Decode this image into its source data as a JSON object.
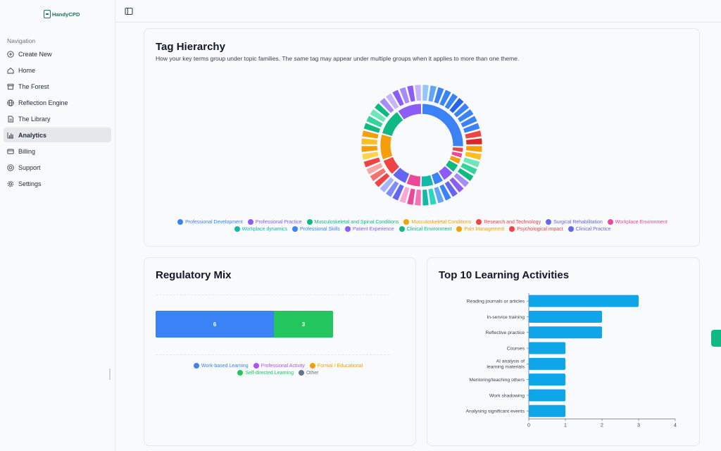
{
  "app": {
    "logo_text": "HandyCPD"
  },
  "sidebar": {
    "section_label": "Navigation",
    "items": [
      {
        "label": "Create New",
        "icon": "plus-circle-icon"
      },
      {
        "label": "Home",
        "icon": "home-icon"
      },
      {
        "label": "The Forest",
        "icon": "archive-icon"
      },
      {
        "label": "Reflection Engine",
        "icon": "globe-icon"
      },
      {
        "label": "The Library",
        "icon": "file-icon"
      },
      {
        "label": "Analytics",
        "icon": "bar-chart-icon",
        "active": true
      },
      {
        "label": "Billing",
        "icon": "card-icon"
      },
      {
        "label": "Support",
        "icon": "lifebuoy-icon"
      },
      {
        "label": "Settings",
        "icon": "gear-icon"
      }
    ]
  },
  "tag_hierarchy": {
    "title": "Tag Hierarchy",
    "subtitle": "How your key terms group under topic families. The same tag may appear under multiple groups when it applies to more than one theme.",
    "legend": [
      {
        "label": "Professional Development",
        "color": "#3b82f6"
      },
      {
        "label": "Professional Practice",
        "color": "#8b5cf6"
      },
      {
        "label": "Musculoskeletal and Spinal Conditions",
        "color": "#10b981"
      },
      {
        "label": "Musculoskeletal Conditions",
        "color": "#f59e0b"
      },
      {
        "label": "Research and Technology",
        "color": "#ef4444"
      },
      {
        "label": "Surgical Rehabilitation",
        "color": "#6366f1"
      },
      {
        "label": "Workplace Environment",
        "color": "#ec4899"
      },
      {
        "label": "Workplace dynamics",
        "color": "#14b8a6"
      },
      {
        "label": "Professional Skills",
        "color": "#3b82f6"
      },
      {
        "label": "Patient Experience",
        "color": "#8b5cf6"
      },
      {
        "label": "Clinical Environment",
        "color": "#10b981"
      },
      {
        "label": "Pain Management",
        "color": "#f59e0b"
      },
      {
        "label": "Psychological impact",
        "color": "#ef4444"
      },
      {
        "label": "Clinical Practice",
        "color": "#6366f1"
      }
    ]
  },
  "regulatory_mix": {
    "title": "Regulatory Mix",
    "segments": [
      {
        "label": "Work-based Learning",
        "value": 6,
        "color": "#3b82f6"
      },
      {
        "label": "Self-directed Learning",
        "value": 3,
        "color": "#22c55e"
      }
    ],
    "legend": [
      {
        "label": "Work-based Learning",
        "color": "#3b82f6"
      },
      {
        "label": "Professional Activity",
        "color": "#a855f7"
      },
      {
        "label": "Formal / Educational",
        "color": "#f59e0b"
      },
      {
        "label": "Self-directed Learning",
        "color": "#22c55e"
      },
      {
        "label": "Other",
        "color": "#64748b"
      }
    ]
  },
  "top_activities": {
    "title": "Top 10 Learning Activities",
    "bar_color": "#0ea5e9"
  },
  "chart_data": [
    {
      "type": "bar",
      "orientation": "horizontal",
      "categories": [
        "Reading journals or articles",
        "In-service training",
        "Reflective practice",
        "Courses",
        "AI analysis of learning materials",
        "Mentoring/teaching others",
        "Work shadowing",
        "Analysing significant events"
      ],
      "values": [
        3,
        2,
        2,
        1,
        1,
        1,
        1,
        1
      ],
      "xlim": [
        0,
        4
      ],
      "xticks": [
        0,
        1,
        2,
        3,
        4
      ]
    },
    {
      "type": "bar",
      "orientation": "stacked-horizontal",
      "categories": [
        "Work-based Learning",
        "Self-directed Learning"
      ],
      "values": [
        6,
        3
      ]
    }
  ]
}
